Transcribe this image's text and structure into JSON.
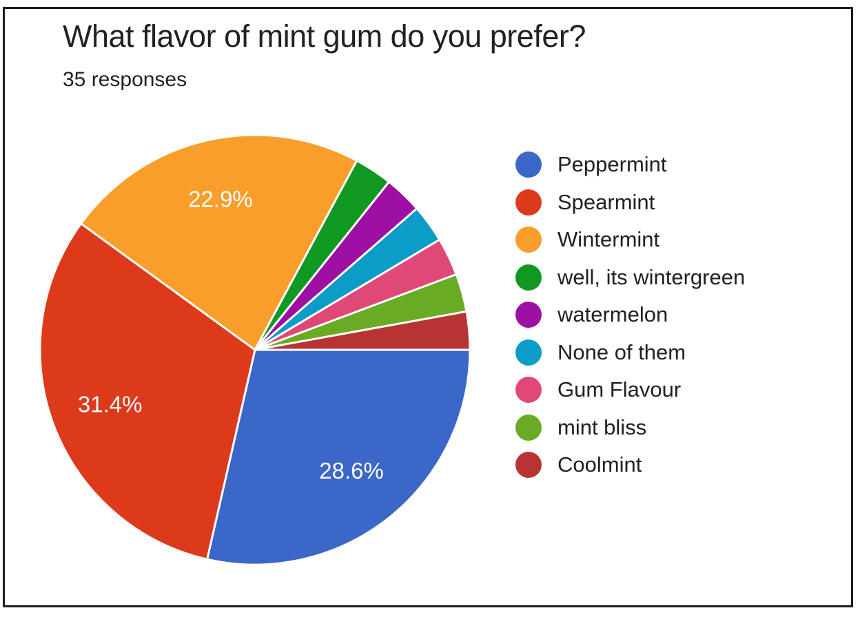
{
  "card": {
    "title": "What flavor of mint gum do you prefer?",
    "responses_label": "35 responses"
  },
  "chart_data": {
    "type": "pie",
    "title": "What flavor of mint gum do you prefer?",
    "subtitle": "35 responses",
    "total_responses": 35,
    "legend_position": "right",
    "start_angle_deg": 0,
    "direction": "clockwise",
    "slice_separator_color": "#ffffff",
    "percent_label_color": "#ffffff",
    "slices": [
      {
        "label": "Peppermint",
        "value": 10,
        "percent": 28.6,
        "percent_label": "28.6%",
        "color": "#3a67c8",
        "show_label": true
      },
      {
        "label": "Spearmint",
        "value": 11,
        "percent": 31.4,
        "percent_label": "31.4%",
        "color": "#dd3a1c",
        "show_label": true
      },
      {
        "label": "Wintermint",
        "value": 8,
        "percent": 22.9,
        "percent_label": "22.9%",
        "color": "#f99d2b",
        "show_label": true
      },
      {
        "label": "well, its wintergreen",
        "value": 1,
        "percent": 2.9,
        "percent_label": "",
        "color": "#109823",
        "show_label": false
      },
      {
        "label": "watermelon",
        "value": 1,
        "percent": 2.9,
        "percent_label": "",
        "color": "#9c10a4",
        "show_label": false
      },
      {
        "label": "None of them",
        "value": 1,
        "percent": 2.9,
        "percent_label": "",
        "color": "#0c9cc8",
        "show_label": false
      },
      {
        "label": "Gum Flavour",
        "value": 1,
        "percent": 2.9,
        "percent_label": "",
        "color": "#e04878",
        "show_label": false
      },
      {
        "label": "mint bliss",
        "value": 1,
        "percent": 2.9,
        "percent_label": "",
        "color": "#69ab24",
        "show_label": false
      },
      {
        "label": "Coolmint",
        "value": 1,
        "percent": 2.9,
        "percent_label": "",
        "color": "#b83434",
        "show_label": false
      }
    ]
  }
}
